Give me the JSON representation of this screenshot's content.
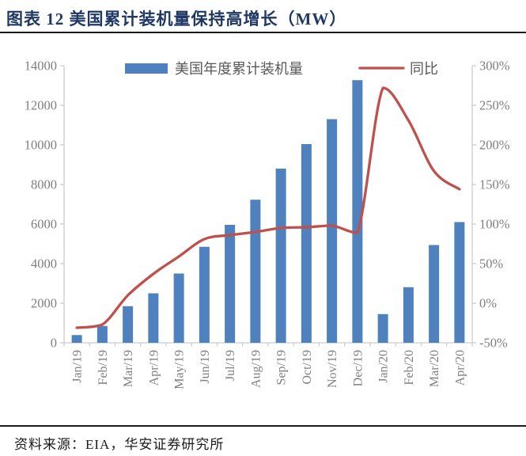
{
  "page": {
    "title": "图表 12 美国累计装机量保持高增长（MW）",
    "source": "资料来源：EIA，华安证券研究所"
  },
  "colors": {
    "bar": "#4E81BD",
    "line": "#C0504D",
    "title_text": "#1F3864",
    "rule": "#1A1A1A",
    "axis_text": "#7F7F7F",
    "legend_text": "#595959",
    "axis_line": "#C9C9C9",
    "source_text": "#1A1A1A"
  },
  "chart_data": {
    "type": "bar",
    "title": "",
    "xlabel": "",
    "ylabel": "",
    "categories": [
      "Jan/19",
      "Feb/19",
      "Mar/19",
      "Apr/19",
      "May/19",
      "Jun/19",
      "Jul/19",
      "Aug/19",
      "Sep/19",
      "Oct/19",
      "Nov/19",
      "Dec/19",
      "Jan/20",
      "Feb/20",
      "Mar/20",
      "Apr/20"
    ],
    "series": [
      {
        "name": "美国年度累计装机量",
        "type": "bar",
        "axis": "left",
        "values": [
          390,
          850,
          1850,
          2500,
          3500,
          4850,
          5960,
          7230,
          8800,
          10040,
          11300,
          13270,
          1450,
          2810,
          4940,
          6100
        ]
      },
      {
        "name": "同比",
        "type": "line",
        "axis": "right",
        "values": [
          -31,
          -27,
          10,
          37,
          59,
          81,
          86,
          90,
          95,
          96,
          98,
          89,
          272,
          231,
          167,
          144
        ]
      }
    ],
    "left_axis": {
      "min": 0,
      "max": 14000,
      "step": 2000,
      "tick_labels": [
        "0",
        "2000",
        "4000",
        "6000",
        "8000",
        "10000",
        "12000",
        "14000"
      ]
    },
    "right_axis": {
      "min": -50,
      "max": 300,
      "step": 50,
      "tick_labels": [
        "-50%",
        "0%",
        "50%",
        "100%",
        "150%",
        "200%",
        "250%",
        "300%"
      ],
      "format": "percent"
    },
    "legend_position": "top-center",
    "grid": false,
    "x_label_rotation": 90
  }
}
